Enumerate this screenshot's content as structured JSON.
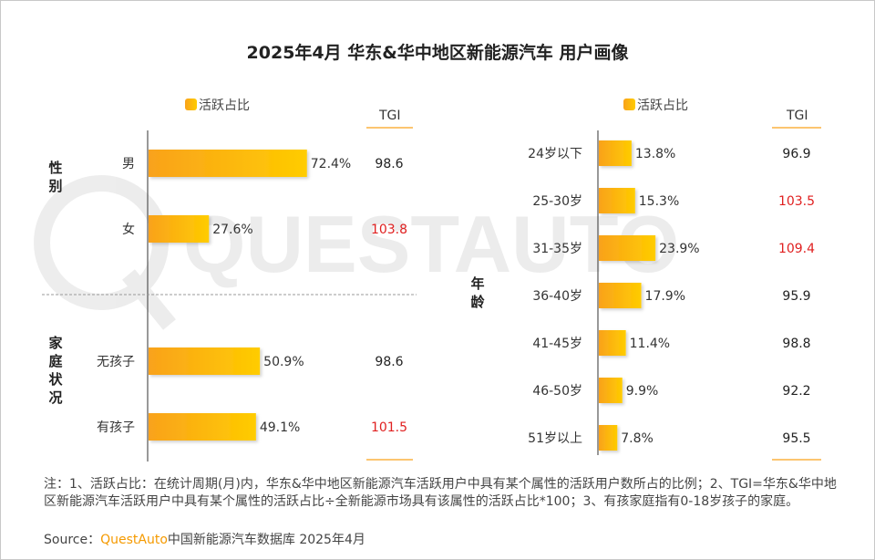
{
  "title": "2025年4月 华东&华中地区新能源汽车 用户画像",
  "watermark": "QUESTAUTO",
  "colors": {
    "bar_start": "#f9a21b",
    "bar_end": "#ffcc00",
    "tgi_normal": "#222222",
    "tgi_high": "#e02020",
    "brand": "#f59a00"
  },
  "legend_label": "活跃占比",
  "tgi_label": "TGI",
  "chart_data": [
    {
      "type": "bar",
      "orientation": "horizontal",
      "groups": [
        {
          "name": "性别",
          "categories": [
            "男",
            "女"
          ],
          "values": [
            72.4,
            27.6
          ],
          "tgi": [
            98.6,
            103.8
          ]
        },
        {
          "name": "家庭状况",
          "categories": [
            "无孩子",
            "有孩子"
          ],
          "values": [
            50.9,
            49.1
          ],
          "tgi": [
            98.6,
            101.5
          ]
        }
      ],
      "series": [
        {
          "name": "活跃占比",
          "unit": "%"
        }
      ],
      "tgi_highlight_threshold": 100
    },
    {
      "type": "bar",
      "orientation": "horizontal",
      "groups": [
        {
          "name": "年龄",
          "categories": [
            "24岁以下",
            "25-30岁",
            "31-35岁",
            "36-40岁",
            "41-45岁",
            "46-50岁",
            "51岁以上"
          ],
          "values": [
            13.8,
            15.3,
            23.9,
            17.9,
            11.4,
            9.9,
            7.8
          ],
          "tgi": [
            96.9,
            103.5,
            109.4,
            95.9,
            98.8,
            92.2,
            95.5
          ]
        }
      ],
      "series": [
        {
          "name": "活跃占比",
          "unit": "%"
        }
      ],
      "tgi_highlight_threshold": 100
    }
  ],
  "note": "注：1、活跃占比：在统计周期(月)内，华东&华中地区新能源汽车活跃用户中具有某个属性的活跃用户数所占的比例；2、TGI=华东&华中地区新能源汽车活跃用户中具有某个属性的活跃占比÷全新能源市场具有该属性的活跃占比*100；3、有孩家庭指有0-18岁孩子的家庭。",
  "source": {
    "prefix": "Source：",
    "brand": "QuestAuto",
    "suffix": "中国新能源汽车数据库 2025年4月"
  }
}
